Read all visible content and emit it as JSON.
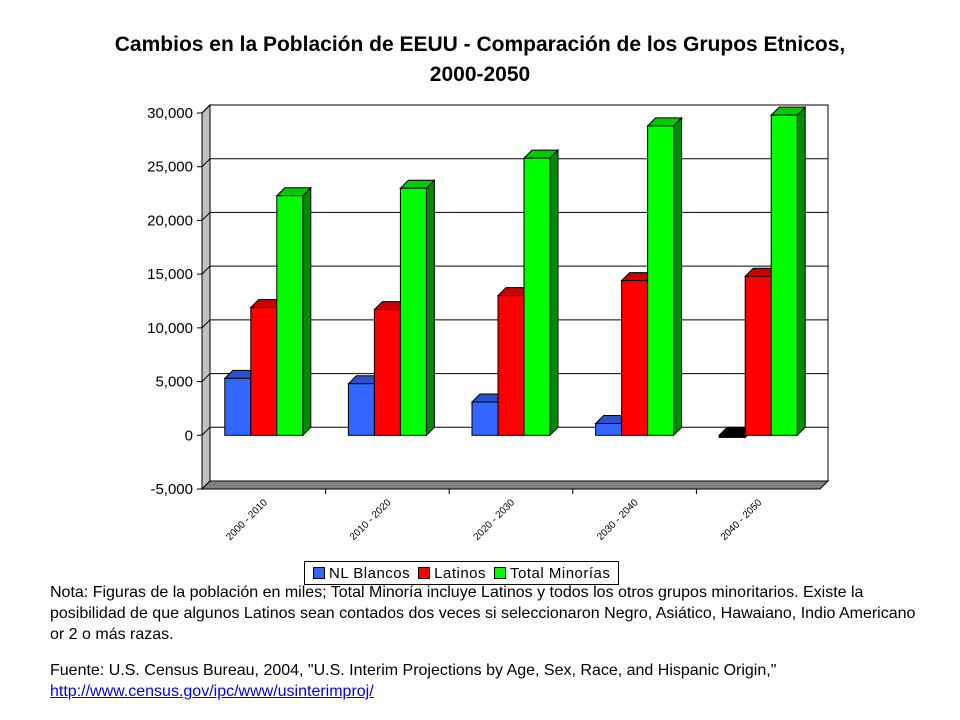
{
  "chart_data": {
    "type": "bar",
    "title_line1": "Cambios en la Población de EEUU - Comparación de los Grupos Etnicos,",
    "title_line2": "2000-2050",
    "categories": [
      "2000 - 2010",
      "2010 - 2020",
      "2020 - 2030",
      "2030 - 2040",
      "2040 - 2050"
    ],
    "series": [
      {
        "name": "NL Blancos",
        "color": "#3366ff",
        "values": [
          5300,
          4800,
          3100,
          1100,
          -200
        ]
      },
      {
        "name": "Latinos",
        "color": "#ff0000",
        "values": [
          11900,
          11700,
          13000,
          14400,
          14800
        ]
      },
      {
        "name": "Total Minorías",
        "color": "#00ff00",
        "values": [
          22300,
          23000,
          25800,
          28800,
          29800
        ]
      }
    ],
    "ylim": [
      -5000,
      30000
    ],
    "yticks": [
      30000,
      25000,
      20000,
      15000,
      10000,
      5000,
      0,
      -5000
    ],
    "ytick_labels": [
      "30,000",
      "25,000",
      "20,000",
      "15,000",
      "10,000",
      "5,000",
      "0",
      "-5,000"
    ],
    "grid": true,
    "legend_position": "bottom"
  },
  "note": "Nota: Figuras de la población en miles; Total Minoría incluye Latinos y todos los otros grupos minoritarios. Existe la posibilidad de que algunos Latinos sean contados dos veces si seleccionaron Negro, Asiático, Hawaiano, Indio Americano or 2 o más razas.",
  "source": {
    "text": "Fuente: U.S. Census Bureau, 2004, \"U.S. Interim Projections by Age, Sex, Race, and Hispanic Origin,\"",
    "link": "http://www.census.gov/ipc/www/usinterimproj/"
  }
}
